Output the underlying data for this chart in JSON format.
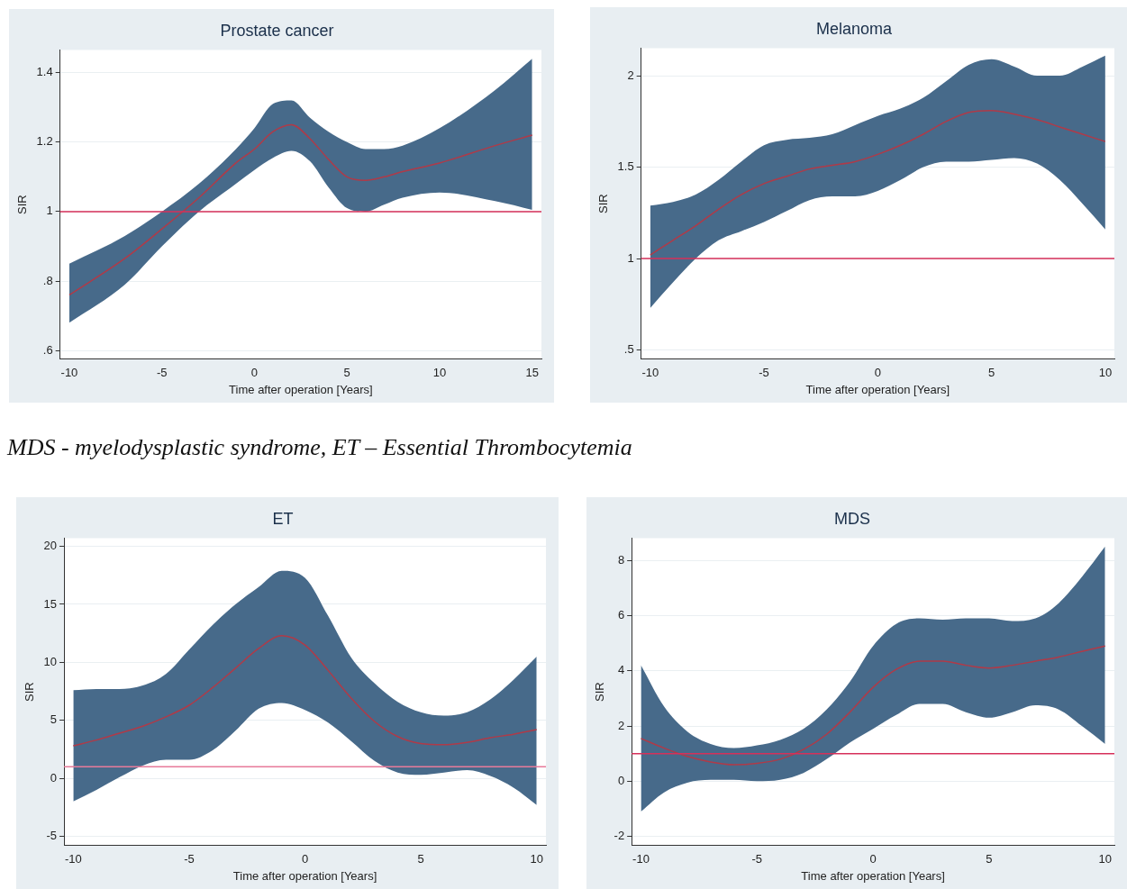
{
  "chart_data": [
    {
      "type": "line",
      "title": "Prostate cancer",
      "xlabel": "Time after operation [Years]",
      "ylabel": "SIR",
      "marker": "none",
      "grid": "y",
      "x": [
        -10,
        -7,
        -5,
        -3,
        -1,
        0,
        1,
        2,
        3,
        4,
        5,
        6,
        7,
        8,
        10,
        13,
        15
      ],
      "series": [
        {
          "color": "#b03a48",
          "values": [
            0.76,
            0.865,
            0.95,
            1.04,
            1.14,
            1.18,
            1.23,
            1.25,
            1.21,
            1.15,
            1.1,
            1.09,
            1.1,
            1.115,
            1.14,
            1.19,
            1.22
          ],
          "lower": [
            0.68,
            0.79,
            0.9,
            1.0,
            1.08,
            1.12,
            1.155,
            1.175,
            1.145,
            1.07,
            1.01,
            1.0,
            1.02,
            1.04,
            1.055,
            1.03,
            1.005
          ],
          "upper": [
            0.85,
            0.93,
            1.0,
            1.08,
            1.18,
            1.24,
            1.31,
            1.32,
            1.27,
            1.23,
            1.2,
            1.18,
            1.18,
            1.19,
            1.24,
            1.35,
            1.44
          ]
        }
      ],
      "xlim": [
        -10.5,
        15.5
      ],
      "ylim": [
        0.575,
        1.465
      ],
      "xticks": [
        -10,
        -5,
        0,
        5,
        10,
        15
      ],
      "yticks": [
        {
          "value": 0.6,
          "label": ".6"
        },
        {
          "value": 0.8,
          "label": ".8"
        },
        1,
        1.2,
        1.4
      ],
      "ref_lines": [
        {
          "axis": "y",
          "value": 1,
          "color": "#d6305a"
        }
      ]
    },
    {
      "type": "line",
      "title": "Melanoma",
      "xlabel": "Time after operation [Years]",
      "ylabel": "SIR",
      "marker": "none",
      "grid": "y",
      "x": [
        -10,
        -9,
        -8,
        -7,
        -6,
        -5,
        -4,
        -3,
        -2,
        -1,
        0,
        1,
        2,
        3,
        4,
        5,
        6,
        7,
        8,
        9,
        10
      ],
      "series": [
        {
          "color": "#b03a48",
          "values": [
            1.02,
            1.1,
            1.18,
            1.27,
            1.35,
            1.41,
            1.45,
            1.49,
            1.51,
            1.53,
            1.57,
            1.62,
            1.68,
            1.75,
            1.8,
            1.81,
            1.79,
            1.76,
            1.72,
            1.68,
            1.64
          ],
          "lower": [
            0.73,
            0.87,
            1.0,
            1.1,
            1.15,
            1.2,
            1.26,
            1.32,
            1.34,
            1.34,
            1.37,
            1.43,
            1.5,
            1.53,
            1.53,
            1.54,
            1.55,
            1.52,
            1.43,
            1.3,
            1.16
          ],
          "upper": [
            1.29,
            1.31,
            1.35,
            1.43,
            1.53,
            1.62,
            1.65,
            1.66,
            1.68,
            1.73,
            1.78,
            1.82,
            1.88,
            1.97,
            2.06,
            2.09,
            2.05,
            2.0,
            2.0,
            2.05,
            2.11
          ]
        }
      ],
      "xlim": [
        -10.4,
        10.4
      ],
      "ylim": [
        0.45,
        2.15
      ],
      "xticks": [
        -10,
        -5,
        0,
        5,
        10
      ],
      "yticks": [
        {
          "value": 0.5,
          "label": ".5"
        },
        1,
        1.5,
        2
      ],
      "ref_lines": [
        {
          "axis": "y",
          "value": 1,
          "color": "#d6305a"
        }
      ]
    },
    {
      "type": "line",
      "title": "ET",
      "xlabel": "Time after operation [Years]",
      "ylabel": "SIR",
      "marker": "none",
      "grid": "y",
      "annotations": [
        "MDS - myelodysplastic syndrome, ET – Essential Thrombocytemia"
      ],
      "x": [
        -10,
        -9,
        -8,
        -7,
        -6,
        -5,
        -4,
        -3,
        -2,
        -1,
        0,
        1,
        2,
        3,
        4,
        5,
        6,
        7,
        8,
        9,
        10
      ],
      "series": [
        {
          "color": "#b03a48",
          "values": [
            2.8,
            3.3,
            3.9,
            4.5,
            5.3,
            6.3,
            7.8,
            9.5,
            11.2,
            12.3,
            11.5,
            9.3,
            6.9,
            4.9,
            3.6,
            3.0,
            2.9,
            3.1,
            3.5,
            3.8,
            4.2
          ],
          "lower": [
            -2.0,
            -1.0,
            0.1,
            1.1,
            1.6,
            1.6,
            2.4,
            4.1,
            6.0,
            6.5,
            5.9,
            4.8,
            3.2,
            1.5,
            0.5,
            0.3,
            0.5,
            0.7,
            0.2,
            -0.8,
            -2.3
          ],
          "upper": [
            7.6,
            7.7,
            7.7,
            8.0,
            9.0,
            11.1,
            13.2,
            15.0,
            16.5,
            17.9,
            17.3,
            14.0,
            10.4,
            8.2,
            6.6,
            5.7,
            5.4,
            5.7,
            6.8,
            8.5,
            10.5
          ]
        }
      ],
      "xlim": [
        -10.4,
        10.4
      ],
      "ylim": [
        -5.8,
        20.7
      ],
      "xticks": [
        -10,
        -5,
        0,
        5,
        10
      ],
      "yticks": [
        -5,
        0,
        5,
        10,
        15,
        20
      ],
      "ref_lines": [
        {
          "axis": "y",
          "value": 1,
          "color": "#e87a9a"
        }
      ]
    },
    {
      "type": "line",
      "title": "MDS",
      "xlabel": "Time after operation [Years]",
      "ylabel": "SIR",
      "marker": "none",
      "grid": "y",
      "x": [
        -10,
        -9,
        -8,
        -7,
        -6,
        -5,
        -4,
        -3,
        -2,
        -1,
        0,
        1,
        2,
        3,
        4,
        5,
        6,
        7,
        8,
        9,
        10
      ],
      "series": [
        {
          "color": "#b03a48",
          "values": [
            1.55,
            1.2,
            0.9,
            0.7,
            0.6,
            0.65,
            0.8,
            1.15,
            1.7,
            2.5,
            3.4,
            4.05,
            4.35,
            4.35,
            4.2,
            4.1,
            4.2,
            4.35,
            4.5,
            4.7,
            4.9
          ],
          "lower": [
            -1.1,
            -0.4,
            -0.05,
            0.05,
            0.05,
            0.0,
            0.05,
            0.3,
            0.8,
            1.4,
            1.9,
            2.4,
            2.8,
            2.8,
            2.5,
            2.3,
            2.5,
            2.75,
            2.6,
            2.0,
            1.35
          ],
          "upper": [
            4.2,
            2.7,
            1.8,
            1.35,
            1.2,
            1.3,
            1.5,
            1.9,
            2.6,
            3.6,
            4.9,
            5.7,
            5.9,
            5.85,
            5.9,
            5.9,
            5.8,
            5.9,
            6.45,
            7.4,
            8.5
          ]
        }
      ],
      "xlim": [
        -10.4,
        10.4
      ],
      "ylim": [
        -2.33,
        8.8
      ],
      "xticks": [
        -10,
        -5,
        0,
        5,
        10
      ],
      "yticks": [
        -2,
        0,
        2,
        4,
        6,
        8
      ],
      "ref_lines": [
        {
          "axis": "y",
          "value": 1,
          "color": "#d6305a"
        }
      ]
    }
  ]
}
